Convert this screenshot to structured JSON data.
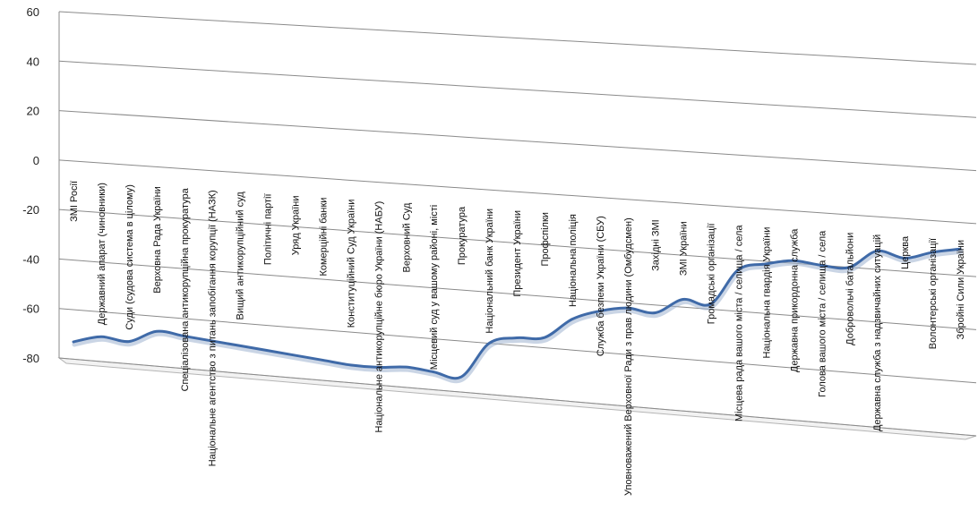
{
  "chart_data": {
    "type": "line",
    "view": "3d-perspective",
    "title": "",
    "xlabel": "",
    "ylabel": "",
    "ylim": [
      -80,
      60
    ],
    "yticks": [
      60,
      40,
      20,
      0,
      -20,
      -40,
      -60,
      -80
    ],
    "grid": true,
    "legend": "none",
    "line_color": "#3f6aa8",
    "categories": [
      "ЗМІ Росії",
      "Державний апарат (чиновники)",
      "Суди (судова система в цілому)",
      "Верховна Рада України",
      "Спеціалізована антикорупційна прокуратура",
      "Національне агентство з питань запобігання корупції (НАЗК)",
      "Вищий антикорупційний суд",
      "Політичні партії",
      "Уряд України",
      "Комерційні банки",
      "Конституційний Суд України",
      "Національне антикорупційне бюро України (НАБУ)",
      "Верховний Суд",
      "Місцевий суд у вашому районі, місті",
      "Прокуратура",
      "Національний банк України",
      "Президент України",
      "Профспілки",
      "Національна поліція",
      "Служба безпеки України (СБУ)",
      "Уповноважений Верховної Ради з прав людини (Омбудсмен)",
      "Західні ЗМІ",
      "ЗМІ України",
      "Громадські організації",
      "Місцева рада вашого міста / селища / села",
      "Національна гвардія України",
      "Державна прикордонна служба",
      "Голова вашого міста / селища / села",
      "Добровольчі батальйони",
      "Державна служба з надзвичайних ситуацій",
      "Церква",
      "Волонтерські організації",
      "Збройні Сили України"
    ],
    "values": [
      -73,
      -70,
      -71,
      -66,
      -67,
      -68,
      -69,
      -70,
      -71,
      -72,
      -73,
      -73,
      -72,
      -73,
      -74,
      -60,
      -57,
      -56,
      -48,
      -44,
      -42,
      -43,
      -37,
      -38,
      -24,
      -21,
      -19,
      -20,
      -20,
      -13,
      -15,
      -12,
      -10
    ]
  }
}
